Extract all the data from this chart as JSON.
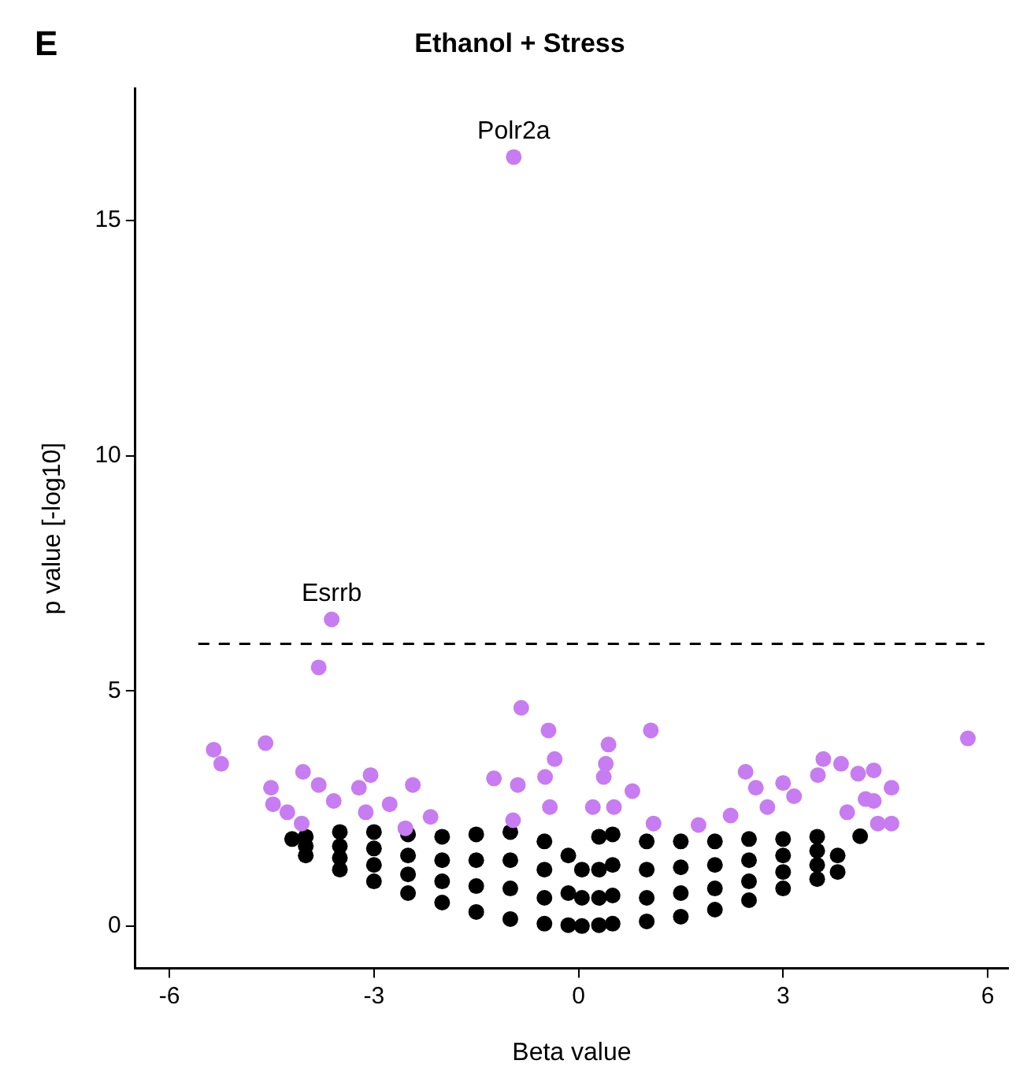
{
  "chart_data": {
    "type": "scatter",
    "title": "Ethanol + Stress",
    "xlabel": "Beta value",
    "ylabel": "p value [-log10]",
    "annotations": [
      "E",
      {
        "text": "Polr2a",
        "x": -0.95,
        "y": 16.35
      },
      {
        "text": "Esrrb",
        "x": -3.62,
        "y": 6.52
      }
    ],
    "xlim": [
      -6.5,
      6.3
    ],
    "ylim": [
      -0.9,
      17.8
    ],
    "xticks": [
      -6,
      -3,
      0,
      3,
      6
    ],
    "yticks": [
      0,
      5,
      10,
      15
    ],
    "grid": false,
    "legend": false,
    "marker": "circle",
    "ref_lines": [
      {
        "axis": "y",
        "value": 6,
        "color": "#000000",
        "line_style": "dashed"
      }
    ],
    "series": [
      {
        "color": "#000000",
        "x": [
          -4.2,
          -4.0,
          -4.0,
          -4.0,
          -3.5,
          -3.5,
          -3.5,
          -3.5,
          -3.0,
          -3.0,
          -3.0,
          -3.0,
          -2.5,
          -2.5,
          -2.5,
          -2.5,
          -2.0,
          -2.0,
          -2.0,
          -2.0,
          -1.5,
          -1.5,
          -1.5,
          -1.5,
          -1.0,
          -1.0,
          -1.0,
          -1.0,
          -0.5,
          -0.5,
          -0.5,
          -0.5,
          -0.15,
          -0.15,
          -0.15,
          0.05,
          0.05,
          0.05,
          0.3,
          0.3,
          0.3,
          0.3,
          0.5,
          0.5,
          0.5,
          0.5,
          1.0,
          1.0,
          1.0,
          1.0,
          1.5,
          1.5,
          1.5,
          1.5,
          2.0,
          2.0,
          2.0,
          2.0,
          2.5,
          2.5,
          2.5,
          2.5,
          3.0,
          3.0,
          3.0,
          3.0,
          3.5,
          3.5,
          3.5,
          3.5,
          3.8,
          3.8,
          4.13
        ],
        "values": [
          1.85,
          1.5,
          1.7,
          1.9,
          1.2,
          1.45,
          1.7,
          2.0,
          0.95,
          1.3,
          1.65,
          2.0,
          0.7,
          1.1,
          1.5,
          1.95,
          0.5,
          0.95,
          1.4,
          1.9,
          0.3,
          0.85,
          1.4,
          1.95,
          0.15,
          0.8,
          1.4,
          2.0,
          0.05,
          0.6,
          1.2,
          1.8,
          0.02,
          0.7,
          1.5,
          0.0,
          0.6,
          1.2,
          0.02,
          0.6,
          1.2,
          1.9,
          0.05,
          0.65,
          1.3,
          1.95,
          0.1,
          0.6,
          1.2,
          1.8,
          0.2,
          0.7,
          1.25,
          1.8,
          0.35,
          0.8,
          1.3,
          1.8,
          0.55,
          0.95,
          1.4,
          1.85,
          0.8,
          1.15,
          1.5,
          1.85,
          1.0,
          1.3,
          1.6,
          1.9,
          1.15,
          1.5,
          1.91
        ]
      },
      {
        "color": "#c77cf2",
        "x": [
          -0.95,
          -3.62,
          -3.81,
          -0.84,
          -0.44,
          -0.35,
          -5.35,
          -5.24,
          -4.59,
          -4.04,
          -4.51,
          -3.81,
          -3.05,
          -2.43,
          -1.24,
          -4.48,
          -4.27,
          -4.06,
          -3.59,
          -3.22,
          -2.77,
          -2.17,
          -0.89,
          -0.96,
          -0.49,
          -0.42,
          -2.54,
          -3.12,
          1.06,
          5.71,
          0.44,
          0.4,
          0.37,
          0.79,
          3.59,
          3.85,
          4.1,
          4.33,
          4.59,
          2.45,
          2.6,
          3.0,
          3.51,
          4.21,
          4.33,
          4.39,
          4.59,
          3.94,
          3.16,
          2.77,
          2.23,
          1.76,
          1.1,
          0.21,
          0.52
        ],
        "values": [
          16.35,
          6.52,
          5.5,
          4.64,
          4.16,
          3.55,
          3.75,
          3.45,
          3.89,
          3.28,
          2.94,
          3.0,
          3.21,
          3.0,
          3.14,
          2.59,
          2.42,
          2.18,
          2.66,
          2.94,
          2.59,
          2.32,
          3.0,
          2.25,
          3.17,
          2.53,
          2.08,
          2.42,
          4.16,
          3.99,
          3.86,
          3.45,
          3.17,
          2.87,
          3.55,
          3.45,
          3.24,
          3.31,
          2.94,
          3.28,
          2.94,
          3.04,
          3.21,
          2.7,
          2.66,
          2.18,
          2.18,
          2.42,
          2.76,
          2.53,
          2.35,
          2.15,
          2.18,
          2.53,
          2.53
        ]
      }
    ]
  }
}
